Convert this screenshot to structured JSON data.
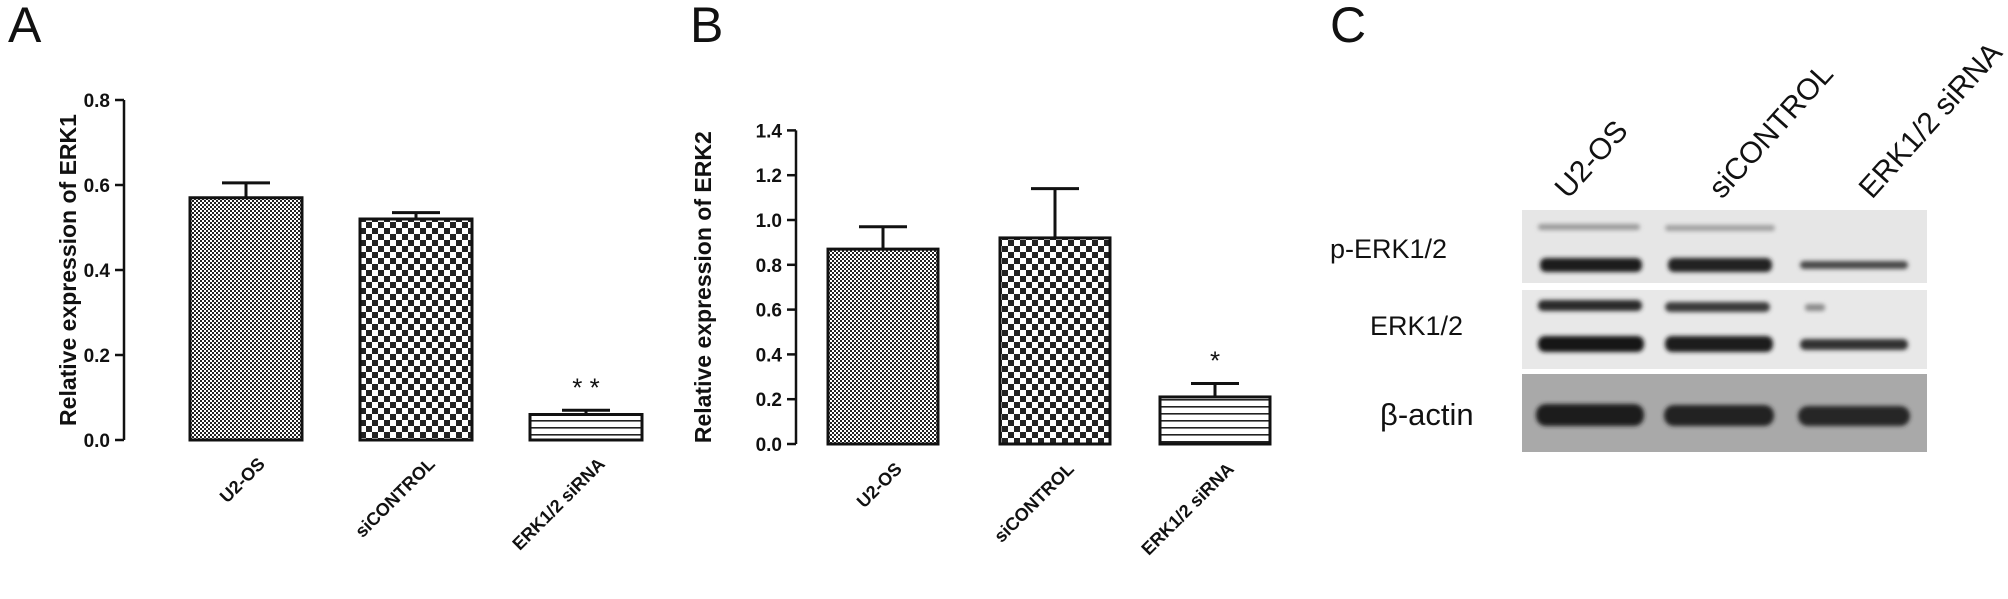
{
  "panels": {
    "a": "A",
    "b": "B",
    "c": "C"
  },
  "chart_data": [
    {
      "type": "bar",
      "panel": "A",
      "categories": [
        "U2-OS",
        "siCONTROL",
        "ERK1/2 siRNA"
      ],
      "values": [
        0.57,
        0.52,
        0.06
      ],
      "errors": [
        0.035,
        0.015,
        0.01
      ],
      "significance": [
        "",
        "",
        "* *"
      ],
      "patterns": [
        "fine-check",
        "check",
        "hlines"
      ],
      "ylabel": "Relative expression of ERK1",
      "ylim": [
        0,
        0.8
      ],
      "yticks": [
        0.0,
        0.2,
        0.4,
        0.6,
        0.8
      ],
      "ytick_labels": [
        "0.0",
        "0.2",
        "0.4",
        "0.6",
        "0.8"
      ]
    },
    {
      "type": "bar",
      "panel": "B",
      "categories": [
        "U2-OS",
        "siCONTROL",
        "ERK1/2 siRNA"
      ],
      "values": [
        0.87,
        0.92,
        0.21
      ],
      "errors": [
        0.1,
        0.22,
        0.06
      ],
      "significance": [
        "",
        "",
        "*"
      ],
      "patterns": [
        "fine-check",
        "check",
        "hlines"
      ],
      "ylabel": "Relative expression of ERK2",
      "ylim": [
        0,
        1.5
      ],
      "yticks": [
        0.0,
        0.2,
        0.4,
        0.6,
        0.8,
        1.0,
        1.2,
        1.4
      ],
      "ytick_labels": [
        "0.0",
        "0.2",
        "0.4",
        "0.6",
        "0.8",
        "1.0",
        "1.2",
        "1.4"
      ]
    }
  ],
  "blot": {
    "lanes": [
      "U2-OS",
      "siCONTROL",
      "ERK1/2 siRNA"
    ],
    "rows": [
      {
        "label": "p-ERK1/2"
      },
      {
        "label": "ERK1/2"
      },
      {
        "label": "β-actin"
      }
    ]
  }
}
